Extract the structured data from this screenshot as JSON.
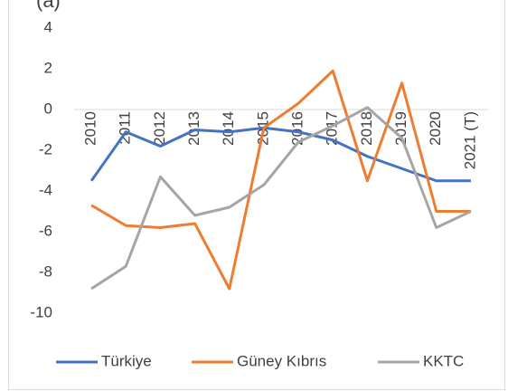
{
  "chart_data": {
    "type": "line",
    "title": "(a)",
    "categories": [
      "2010",
      "2011",
      "2012",
      "2013",
      "2014",
      "2015",
      "2016",
      "2017",
      "2018",
      "2019",
      "2020",
      "2021 (T)"
    ],
    "series": [
      {
        "name": "Türkiye",
        "color": "#4472c4",
        "values": [
          -3.5,
          -1.1,
          -1.8,
          -1.0,
          -1.1,
          -0.9,
          -1.1,
          -1.5,
          -2.3,
          -2.9,
          -3.5,
          -3.5
        ]
      },
      {
        "name": "Güney Kıbrıs",
        "color": "#ed7d31",
        "values": [
          -4.7,
          -5.7,
          -5.8,
          -5.6,
          -8.8,
          -0.9,
          0.3,
          1.9,
          -3.5,
          1.3,
          -5.0,
          -5.0
        ]
      },
      {
        "name": "KKTC",
        "color": "#a5a5a5",
        "values": [
          -8.8,
          -7.7,
          -3.3,
          -5.2,
          -4.8,
          -3.7,
          -1.6,
          -0.8,
          0.1,
          -1.4,
          -5.8,
          -5.0
        ]
      }
    ],
    "ylim": [
      -10,
      4
    ],
    "yticks": [
      -10,
      -8,
      -6,
      -4,
      -2,
      0,
      2,
      4
    ],
    "legend": "bottom"
  }
}
